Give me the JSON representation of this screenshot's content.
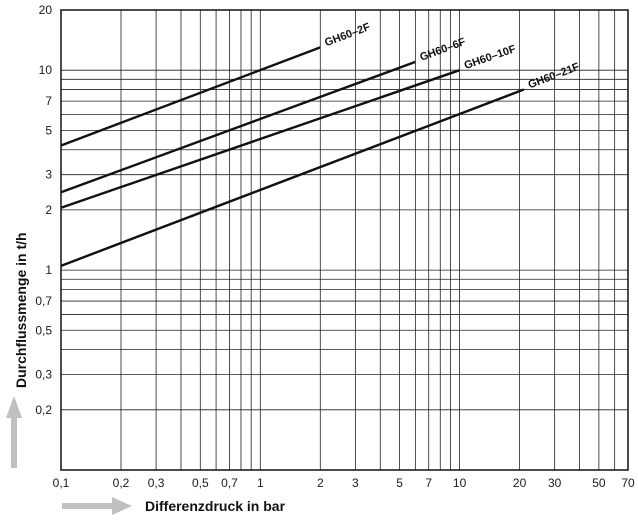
{
  "chart_data": {
    "type": "line",
    "x_scale": "log",
    "y_scale": "log",
    "xlim": [
      0.1,
      70
    ],
    "ylim": [
      0.1,
      20
    ],
    "grid": true,
    "xlabel": "Differenzdruck in bar",
    "ylabel": "Durchflussmenge in t/h",
    "x_tick_labels": [
      {
        "value": 0.1,
        "label": "0,1"
      },
      {
        "value": 0.2,
        "label": "0,2"
      },
      {
        "value": 0.3,
        "label": "0,3"
      },
      {
        "value": 0.5,
        "label": "0,5"
      },
      {
        "value": 0.7,
        "label": "0,7"
      },
      {
        "value": 1,
        "label": "1"
      },
      {
        "value": 2,
        "label": "2"
      },
      {
        "value": 3,
        "label": "3"
      },
      {
        "value": 5,
        "label": "5"
      },
      {
        "value": 7,
        "label": "7"
      },
      {
        "value": 10,
        "label": "10"
      },
      {
        "value": 20,
        "label": "20"
      },
      {
        "value": 30,
        "label": "30"
      },
      {
        "value": 50,
        "label": "50"
      },
      {
        "value": 70,
        "label": "70"
      }
    ],
    "y_tick_labels": [
      {
        "value": 0.2,
        "label": "0,2"
      },
      {
        "value": 0.3,
        "label": "0,3"
      },
      {
        "value": 0.5,
        "label": "0,5"
      },
      {
        "value": 0.7,
        "label": "0,7"
      },
      {
        "value": 1,
        "label": "1"
      },
      {
        "value": 2,
        "label": "2"
      },
      {
        "value": 3,
        "label": "3"
      },
      {
        "value": 5,
        "label": "5"
      },
      {
        "value": 7,
        "label": "7"
      },
      {
        "value": 10,
        "label": "10"
      },
      {
        "value": 20,
        "label": "20"
      }
    ],
    "series": [
      {
        "name": "GH60–2F",
        "x": [
          0.1,
          2.0
        ],
        "y": [
          4.2,
          13.0
        ]
      },
      {
        "name": "GH60–6F",
        "x": [
          0.1,
          6.0
        ],
        "y": [
          2.45,
          11.0
        ]
      },
      {
        "name": "GH60–10F",
        "x": [
          0.1,
          10.0
        ],
        "y": [
          2.05,
          10.0
        ]
      },
      {
        "name": "GH60–21F",
        "x": [
          0.1,
          21.0
        ],
        "y": [
          1.05,
          8.0
        ]
      }
    ],
    "colors": {
      "line": "#111111",
      "grid": "#222222",
      "arrow": "#c0c0c0"
    }
  }
}
